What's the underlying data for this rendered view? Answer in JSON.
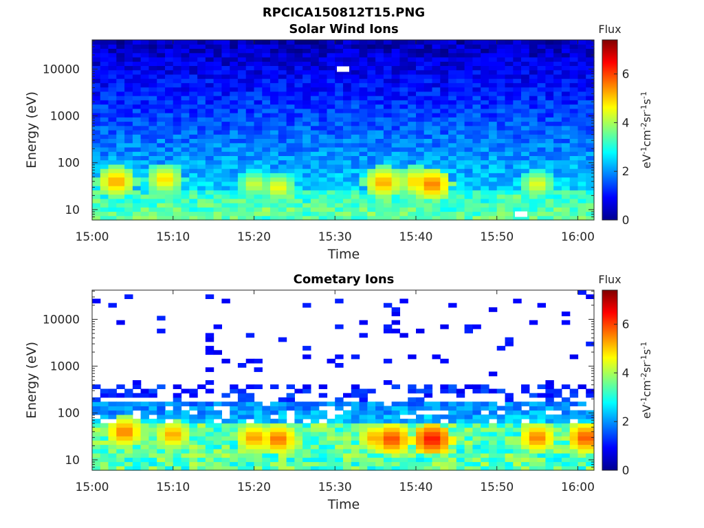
{
  "figure_title": "RPCICA150812T15.PNG",
  "chart_data": [
    {
      "type": "heatmap",
      "title": "Solar Wind Ions",
      "xlabel": "Time",
      "ylabel": "Energy (eV)",
      "x_tick_labels": [
        "15:00",
        "15:10",
        "15:20",
        "15:30",
        "15:40",
        "15:50",
        "16:00"
      ],
      "x_range": [
        "15:00",
        "16:02"
      ],
      "y_scale": "log",
      "y_tick_labels": [
        "10",
        "100",
        "1000",
        "10000"
      ],
      "y_tick_values": [
        10,
        100,
        1000,
        10000
      ],
      "y_range": [
        6,
        42000
      ],
      "colorbar": {
        "label": "Flux",
        "units": "eV-1cm-2sr-1s-1",
        "ticks": [
          "0",
          "2",
          "4",
          "6"
        ],
        "range": [
          0,
          7.4
        ],
        "colormap": "jet"
      },
      "gaps": [
        {
          "time": "15:31",
          "energy_ev": 10000
        },
        {
          "time": "15:53",
          "energy_ev": 8
        }
      ],
      "features": [
        {
          "time": "15:03",
          "energy_ev": 40,
          "flux": 5.6
        },
        {
          "time": "15:09",
          "energy_ev": 45,
          "flux": 5.2
        },
        {
          "time": "15:20",
          "energy_ev": 35,
          "flux": 4.6
        },
        {
          "time": "15:23",
          "energy_ev": 30,
          "flux": 4.9
        },
        {
          "time": "15:36",
          "energy_ev": 38,
          "flux": 5.6
        },
        {
          "time": "15:40",
          "energy_ev": 40,
          "flux": 5.3
        },
        {
          "time": "15:42",
          "energy_ev": 35,
          "flux": 5.9
        },
        {
          "time": "15:55",
          "energy_ev": 35,
          "flux": 4.8
        }
      ]
    },
    {
      "type": "heatmap",
      "title": "Cometary Ions",
      "xlabel": "Time",
      "ylabel": "Energy (eV)",
      "x_tick_labels": [
        "15:00",
        "15:10",
        "15:20",
        "15:30",
        "15:40",
        "15:50",
        "16:00"
      ],
      "x_range": [
        "15:00",
        "16:02"
      ],
      "y_scale": "log",
      "y_tick_labels": [
        "10",
        "100",
        "1000",
        "10000"
      ],
      "y_tick_values": [
        10,
        100,
        1000,
        10000
      ],
      "y_range": [
        6,
        42000
      ],
      "colorbar": {
        "label": "Flux",
        "units": "eV-1cm-2sr-1s-1",
        "ticks": [
          "0",
          "2",
          "4",
          "6"
        ],
        "range": [
          0,
          7.4
        ],
        "colormap": "jet"
      },
      "features": [
        {
          "time": "15:04",
          "energy_ev": 40,
          "flux": 5.9
        },
        {
          "time": "15:10",
          "energy_ev": 35,
          "flux": 5.6
        },
        {
          "time": "15:20",
          "energy_ev": 30,
          "flux": 5.7
        },
        {
          "time": "15:23",
          "energy_ev": 28,
          "flux": 6.0
        },
        {
          "time": "15:35",
          "energy_ev": 30,
          "flux": 5.6
        },
        {
          "time": "15:37",
          "energy_ev": 28,
          "flux": 6.3
        },
        {
          "time": "15:42",
          "energy_ev": 28,
          "flux": 6.7
        },
        {
          "time": "15:55",
          "energy_ev": 30,
          "flux": 5.9
        },
        {
          "time": "16:01",
          "energy_ev": 30,
          "flux": 6.2
        }
      ]
    }
  ]
}
